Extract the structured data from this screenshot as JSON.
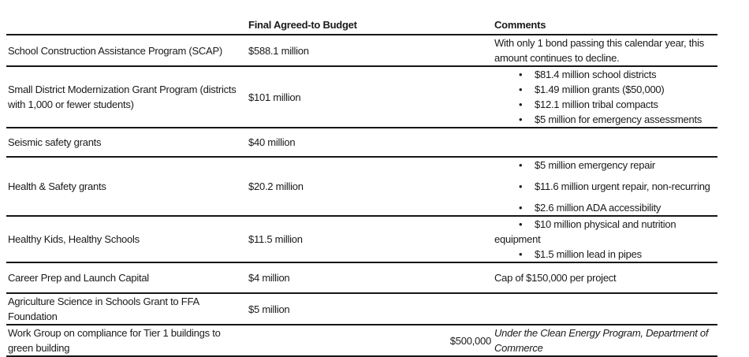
{
  "page": {
    "background": "#ffffff",
    "text_color": "#1a1a1a",
    "line_color": "#161616"
  },
  "table": {
    "bullet_glyph": "•",
    "headers": {
      "program": "",
      "budget": "Final Agreed-to Budget",
      "comments": "Comments"
    },
    "rows": [
      {
        "program": "School Construction Assistance Program (SCAP)",
        "budget": "$588.1 million",
        "comment": "With only 1 bond passing this calendar year, this\namount continues to decline."
      },
      {
        "program": "Small District Modernization Grant Program (districts\nwith 1,000 or fewer students)",
        "budget": "$101 million",
        "comment_bullets": [
          "$81.4 million school districts",
          "$1.49 million grants ($50,000)",
          "$12.1 million tribal compacts",
          "$5 million for emergency assessments"
        ]
      },
      {
        "program": "Seismic safety grants",
        "budget": "$40 million",
        "comment": ""
      },
      {
        "program": "Health & Safety grants",
        "budget": "$20.2 million",
        "comment_bullets": [
          "$5 million emergency repair",
          "$11.6 million urgent repair, non-recurring",
          "$2.6 million ADA accessibility"
        ]
      },
      {
        "program": "Healthy Kids, Healthy Schools",
        "budget": "$11.5 million",
        "comment_bullets": [
          "$10 million physical and nutrition\nequipment",
          "$1.5 million lead in pipes"
        ]
      },
      {
        "program": "Career Prep and Launch Capital",
        "budget": "$4 million",
        "comment": "Cap of $150,000 per project"
      },
      {
        "program": "Agriculture Science in Schools Grant to FFA\nFoundation",
        "budget": "$5 million",
        "comment": ""
      },
      {
        "program": "Work Group on compliance for Tier 1 buildings to\ngreen building",
        "budget": "$500,000",
        "comment": "Under the Clean Energy Program, Department of\nCommerce"
      }
    ]
  }
}
